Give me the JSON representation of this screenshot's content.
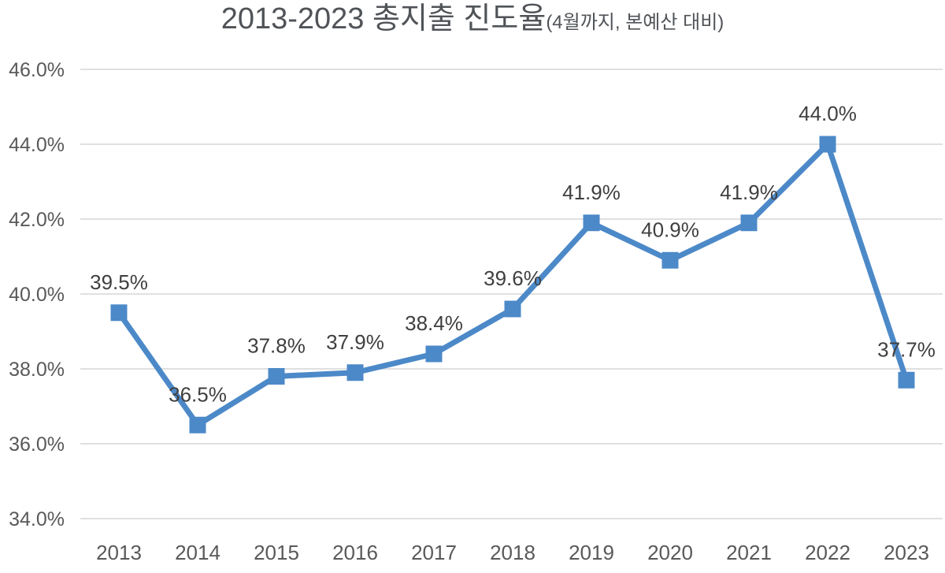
{
  "title": {
    "main": "2013-2023 총지출 진도율",
    "sub": "(4월까지, 본예산 대비)"
  },
  "chart_data": {
    "type": "line",
    "title": "2013-2023 총지출 진도율",
    "subtitle": "(4월까지, 본예산 대비)",
    "categories": [
      "2013",
      "2014",
      "2015",
      "2016",
      "2017",
      "2018",
      "2019",
      "2020",
      "2021",
      "2022",
      "2023"
    ],
    "series": [
      {
        "name": "총지출 진도율",
        "values": [
          39.5,
          36.5,
          37.8,
          37.9,
          38.4,
          39.6,
          41.9,
          40.9,
          41.9,
          44.0,
          37.7
        ]
      }
    ],
    "data_labels": [
      "39.5%",
      "36.5%",
      "37.8%",
      "37.9%",
      "38.4%",
      "39.6%",
      "41.9%",
      "40.9%",
      "41.9%",
      "44.0%",
      "37.7%"
    ],
    "y_tick_labels": [
      "46.0%",
      "44.0%",
      "42.0%",
      "40.0%",
      "38.0%",
      "36.0%",
      "34.0%"
    ],
    "y_tick_values": [
      46,
      44,
      42,
      40,
      38,
      36,
      34
    ],
    "ylim": [
      34,
      46
    ],
    "xlabel": "",
    "ylabel": "",
    "grid": "horizontal",
    "legend": "none",
    "marker": "square",
    "colors": {
      "line": "#4C89C8",
      "marker": "#4C89C8",
      "grid": "#D6D6D6",
      "axis_text": "#595959",
      "data_label_text": "#3F3F3F",
      "title_text": "#505357",
      "background": "#FFFFFF"
    }
  }
}
